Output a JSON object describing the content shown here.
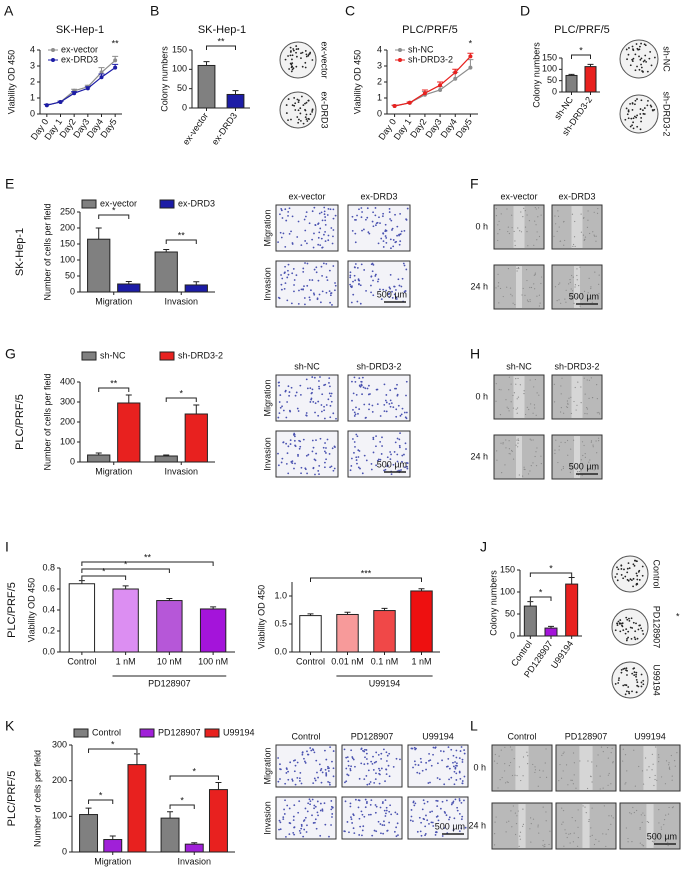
{
  "chart_data": [
    {
      "panel": "A",
      "type": "line",
      "title": "SK-Hep-1",
      "ylabel": "Viability OD 450",
      "categories": [
        "Day 0",
        "Day 1",
        "Day2",
        "Day3",
        "Day4",
        "Day5"
      ],
      "series": [
        {
          "name": "ex-vector",
          "color": "#8c8c8c",
          "values": [
            0.55,
            0.75,
            1.45,
            1.7,
            2.6,
            3.35
          ],
          "errors": [
            0.05,
            0.05,
            0.1,
            0.1,
            0.3,
            0.25
          ]
        },
        {
          "name": "ex-DRD3",
          "color": "#1c1ca6",
          "values": [
            0.55,
            0.75,
            1.3,
            1.6,
            2.3,
            2.9
          ],
          "errors": [
            0.05,
            0.05,
            0.1,
            0.1,
            0.2,
            0.2
          ]
        }
      ],
      "ylim": [
        0,
        4
      ],
      "yticks": [
        0,
        1,
        2,
        3,
        4
      ],
      "annotations": [
        "**"
      ]
    },
    {
      "panel": "B",
      "type": "bar",
      "title": "SK-Hep-1",
      "ylabel": "Colony numbers",
      "categories": [
        "ex-vector",
        "ex-DRD3"
      ],
      "values": [
        110,
        35
      ],
      "errors": [
        10,
        10
      ],
      "colors": [
        "#808080",
        "#1c1ca6"
      ],
      "ylim": [
        0,
        150
      ],
      "yticks": [
        0,
        50,
        100,
        150
      ],
      "annotations": [
        "**"
      ]
    },
    {
      "panel": "C",
      "type": "line",
      "title": "PLC/PRF/5",
      "ylabel": "Viability OD 450",
      "categories": [
        "Day 0",
        "Day 1",
        "Day2",
        "Day3",
        "Day4",
        "Day5"
      ],
      "series": [
        {
          "name": "sh-NC",
          "color": "#8c8c8c",
          "values": [
            0.5,
            0.7,
            1.2,
            1.5,
            2.2,
            2.9
          ],
          "errors": [
            0.05,
            0.05,
            0.2,
            0.2,
            0.4,
            0.5
          ]
        },
        {
          "name": "sh-DRD3-2",
          "color": "#e8211f",
          "values": [
            0.5,
            0.7,
            1.3,
            1.8,
            2.6,
            3.6
          ],
          "errors": [
            0.05,
            0.05,
            0.2,
            0.2,
            0.2,
            0.2
          ]
        }
      ],
      "ylim": [
        0,
        4
      ],
      "yticks": [
        0,
        1,
        2,
        3,
        4
      ],
      "annotations": [
        "*"
      ]
    },
    {
      "panel": "D",
      "type": "bar",
      "title": "PLC/PRF/5",
      "ylabel": "Colony numbers",
      "categories": [
        "sh-NC",
        "sh-DRD3-2"
      ],
      "values": [
        73,
        112
      ],
      "errors": [
        5,
        10
      ],
      "colors": [
        "#808080",
        "#e8211f"
      ],
      "ylim": [
        0,
        150
      ],
      "yticks": [
        0,
        50,
        100,
        150
      ],
      "annotations": [
        "*"
      ]
    },
    {
      "panel": "E",
      "type": "grouped_bar",
      "side_label": "SK-Hep-1",
      "ylabel": "Number of cells per field",
      "categories": [
        "Migration",
        "Invasion"
      ],
      "series": [
        {
          "name": "ex-vector",
          "color": "#808080",
          "values": [
            165,
            125
          ],
          "errors": [
            35,
            8
          ]
        },
        {
          "name": "ex-DRD3",
          "color": "#1c1ca6",
          "values": [
            25,
            22
          ],
          "errors": [
            8,
            10
          ]
        }
      ],
      "ylim": [
        0,
        250
      ],
      "yticks": [
        0,
        50,
        100,
        150,
        200,
        250
      ],
      "annotations": [
        "*",
        "**"
      ]
    },
    {
      "panel": "G",
      "type": "grouped_bar",
      "side_label": "PLC/PRF/5",
      "ylabel": "Number of cells per field",
      "categories": [
        "Migration",
        "Invasion"
      ],
      "series": [
        {
          "name": "sh-NC",
          "color": "#808080",
          "values": [
            35,
            30
          ],
          "errors": [
            10,
            5
          ]
        },
        {
          "name": "sh-DRD3-2",
          "color": "#e8211f",
          "values": [
            295,
            240
          ],
          "errors": [
            40,
            45
          ]
        }
      ],
      "ylim": [
        0,
        400
      ],
      "yticks": [
        0,
        100,
        200,
        300,
        400
      ],
      "annotations": [
        "**",
        "*"
      ]
    },
    {
      "panel": "I",
      "type": "bar",
      "side_label": "PLC/PRF/5",
      "ylabel": "Viability OD 450",
      "group_label": "PD128907",
      "categories": [
        "Control",
        "1 nM",
        "10 nM",
        "100 nM"
      ],
      "values": [
        0.65,
        0.6,
        0.49,
        0.41
      ],
      "errors": [
        0.03,
        0.03,
        0.02,
        0.02
      ],
      "colors": [
        "#ffffff",
        "#dc8ef2",
        "#b657d8",
        "#a414da"
      ],
      "ylim": [
        0,
        0.8
      ],
      "yticks": [
        {
          "value": 0,
          "label": "0.0"
        },
        0.2,
        0.4,
        0.6,
        0.8
      ],
      "annotations": [
        "*",
        "*",
        "**"
      ]
    },
    {
      "type": "bar",
      "ylabel": "Viability OD 450",
      "group_label": "U99194",
      "categories": [
        "Control",
        "0.01 nM",
        "0.1 nM",
        "1 nM"
      ],
      "values": [
        0.65,
        0.67,
        0.74,
        1.09
      ],
      "errors": [
        0.03,
        0.04,
        0.04,
        0.04
      ],
      "colors": [
        "#ffffff",
        "#f79a9a",
        "#f04848",
        "#ee1010"
      ],
      "ylim": [
        0,
        1.25
      ],
      "yticks": [
        {
          "value": 0,
          "label": "0.0"
        },
        0.5,
        {
          "value": 1,
          "label": "1.0"
        }
      ],
      "annotations": [
        "***"
      ]
    },
    {
      "panel": "J",
      "type": "bar",
      "ylabel": "Colony numbers",
      "categories": [
        "Control",
        "PD128907",
        "U99194"
      ],
      "values": [
        68,
        18,
        118
      ],
      "errors": [
        10,
        4,
        15
      ],
      "colors": [
        "#808080",
        "#a414da",
        "#e8211f"
      ],
      "ylim": [
        0,
        150
      ],
      "yticks": [
        0,
        50,
        100,
        150
      ],
      "annotations": [
        "*",
        "*"
      ],
      "side_note": "*"
    },
    {
      "panel": "K",
      "type": "grouped_bar",
      "side_label": "PLC/PRF/5",
      "ylabel": "Number of cells per field",
      "categories": [
        "Migration",
        "Invasion"
      ],
      "series": [
        {
          "name": "Control",
          "color": "#808080",
          "values": [
            105,
            95
          ],
          "errors": [
            18,
            18
          ]
        },
        {
          "name": "PD128907",
          "color": "#a020d8",
          "values": [
            35,
            22
          ],
          "errors": [
            10,
            4
          ]
        },
        {
          "name": "U99194",
          "color": "#e8211f",
          "values": [
            245,
            175
          ],
          "errors": [
            30,
            20
          ]
        }
      ],
      "ylim": [
        0,
        300
      ],
      "yticks": [
        0,
        100,
        200,
        300
      ],
      "annotations": [
        "*",
        "*",
        "*",
        "*"
      ]
    }
  ],
  "image_panels": [
    {
      "rows": [
        "ex-vector",
        "ex-DRD3"
      ]
    },
    {
      "rows": [
        "sh-NC",
        "sh-DRD3-2"
      ]
    },
    {
      "columns": [
        "ex-vector",
        "ex-DRD3"
      ],
      "rows": [
        "Migration",
        "Invasion"
      ],
      "scale_bar": "500 µm"
    },
    {
      "panel": "F",
      "columns": [
        "ex-vector",
        "ex-DRD3"
      ],
      "rows": [
        "0 h",
        "24 h"
      ],
      "scale_bar": "500 µm"
    },
    {
      "columns": [
        "sh-NC",
        "sh-DRD3-2"
      ],
      "rows": [
        "Migration",
        "Invasion"
      ],
      "scale_bar": "500 µm"
    },
    {
      "panel": "H",
      "columns": [
        "sh-NC",
        "sh-DRD3-2"
      ],
      "rows": [
        "0 h",
        "24 h"
      ],
      "scale_bar": "500 µm"
    },
    {
      "rows": [
        "Control",
        "PD128907",
        "U99194"
      ]
    },
    {
      "columns": [
        "Control",
        "PD128907",
        "U99194"
      ],
      "rows": [
        "Migration",
        "Invasion"
      ],
      "scale_bar": "500 µm"
    },
    {
      "panel": "L",
      "columns": [
        "Control",
        "PD128907",
        "U99194"
      ],
      "rows": [
        "0 h",
        "24 h"
      ],
      "scale_bar": "500 µm"
    }
  ]
}
